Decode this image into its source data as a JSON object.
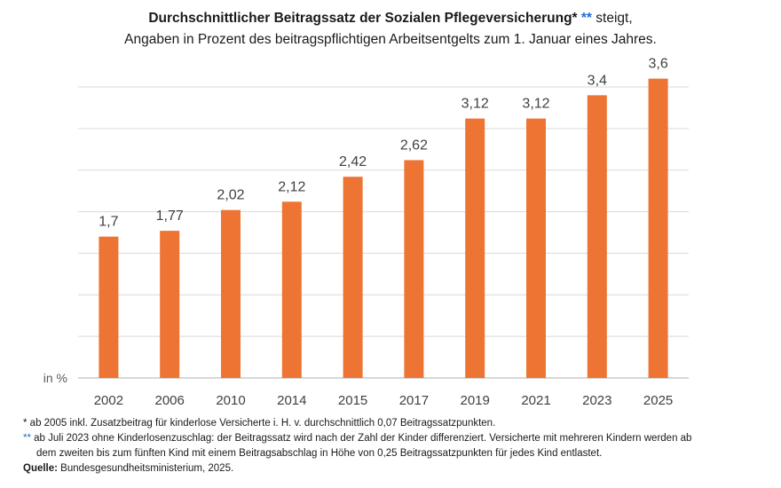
{
  "header": {
    "title_bold": "Durchschnittlicher Beitragssatz der Sozialen Pflegeversicherung*",
    "title_mark": "**",
    "title_rest": " steigt,",
    "subtitle": "Angaben in Prozent des beitragspflichtigen Arbeitsentgelts zum 1. Januar eines Jahres."
  },
  "chart_data": {
    "type": "bar",
    "categories": [
      "2002",
      "2006",
      "2010",
      "2014",
      "2015",
      "2017",
      "2019",
      "2021",
      "2023",
      "2025"
    ],
    "values": [
      1.7,
      1.77,
      2.02,
      2.12,
      2.42,
      2.62,
      3.12,
      3.12,
      3.4,
      3.6
    ],
    "value_labels": [
      "1,7",
      "1,77",
      "2,02",
      "2,12",
      "2,42",
      "2,62",
      "3,12",
      "3,12",
      "3,4",
      "3,6"
    ],
    "ylabel": "in %",
    "ylim": [
      0,
      3.5
    ],
    "grid": true,
    "bar_color": "#ee7433"
  },
  "footnotes": {
    "note1_mark": "*",
    "note1_text": " ab 2005 inkl. Zusatzbeitrag für kinderlose Versicherte i. H. v. durchschnittlich 0,07 Beitragssatzpunkten.",
    "note2_mark": "**",
    "note2_text": " ab Juli 2023 ohne Kinderlosenzuschlag: der Beitragssatz wird nach der Zahl der Kinder differenziert. Versicherte mit mehreren Kindern werden ab",
    "note2_cont": "dem zweiten bis zum fünften Kind mit einem Beitragsabschlag in Höhe von 0,25 Beitragssatzpunkten für jedes Kind entlastet.",
    "source_label": "Quelle:",
    "source_text": " Bundesgesundheitsministerium, 2025."
  }
}
